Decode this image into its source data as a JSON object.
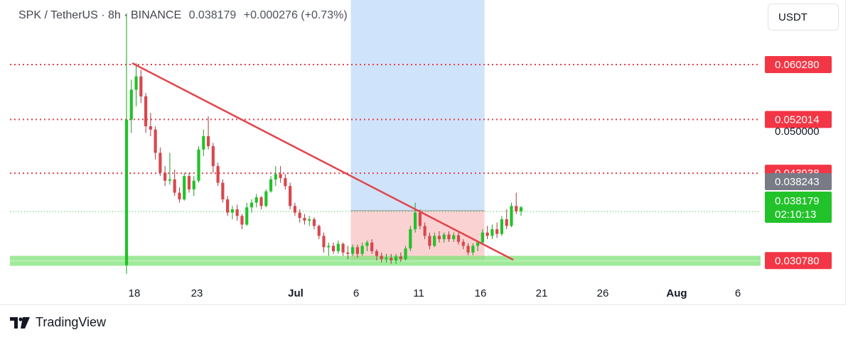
{
  "header": {
    "symbol": "SPK / TetherUS · 8h · BINANCE",
    "last_price": "0.038179",
    "change": "+0.000276 (+0.73%)"
  },
  "unit_button": "USDT",
  "footer": {
    "brand": "TradingView",
    "logo_icon": "tradingview-logo-icon"
  },
  "colors": {
    "up": "#22c22a",
    "down": "#d8474e",
    "trendline": "#e0464c",
    "level_line": "#e5424c",
    "support_zone": "#7fe27a",
    "target_zone": "#cfe3fb",
    "stop_zone": "#fbd2d2",
    "current_price_label": "#22c22a",
    "prev_price_label": "#787b86"
  },
  "chart_data": {
    "type": "candlestick",
    "x_tick_labels": [
      "18",
      "23",
      "Jul",
      "6",
      "11",
      "16",
      "21",
      "26",
      "Aug",
      "6"
    ],
    "y_range": [
      0.0275,
      0.07
    ],
    "price_labels": [
      {
        "value": 0.06028,
        "text": "0.060280",
        "style": "level"
      },
      {
        "value": 0.052014,
        "text": "0.052014",
        "style": "level"
      },
      {
        "value": 0.05,
        "text": "0.050000",
        "style": "axis"
      },
      {
        "value": 0.043938,
        "text": "0.043938",
        "style": "level"
      },
      {
        "value": 0.038243,
        "text": "0.038243",
        "style": "prev"
      },
      {
        "value": 0.038179,
        "text": "0.038179",
        "countdown": "02:10:13",
        "style": "current"
      },
      {
        "value": 0.03078,
        "text": "0.030780",
        "style": "level"
      }
    ],
    "horizontal_levels": [
      0.06028,
      0.052014,
      0.043938
    ],
    "support_zone": [
      0.03,
      0.0315
    ],
    "trendline": {
      "start": {
        "day": 18.7,
        "price": 0.0605
      },
      "end": {
        "day": 43.0,
        "price": 0.0309
      }
    },
    "position_tool": {
      "day_start": 53.5,
      "day_end": 75.5,
      "entry": 0.0383,
      "target": 0.07,
      "stop": 0.0308
    },
    "candles_ohlc": [
      [
        0.0301,
        0.068,
        0.0288,
        0.052
      ],
      [
        0.052,
        0.058,
        0.05,
        0.0565
      ],
      [
        0.0565,
        0.0605,
        0.054,
        0.0585
      ],
      [
        0.0585,
        0.0595,
        0.0545,
        0.0555
      ],
      [
        0.0555,
        0.056,
        0.05,
        0.051
      ],
      [
        0.051,
        0.053,
        0.0495,
        0.0505
      ],
      [
        0.0505,
        0.051,
        0.046,
        0.047
      ],
      [
        0.047,
        0.0478,
        0.0435,
        0.044
      ],
      [
        0.044,
        0.045,
        0.042,
        0.0428
      ],
      [
        0.0428,
        0.047,
        0.0422,
        0.043
      ],
      [
        0.043,
        0.0445,
        0.0405,
        0.041
      ],
      [
        0.041,
        0.0418,
        0.0395,
        0.04
      ],
      [
        0.04,
        0.044,
        0.0398,
        0.0435
      ],
      [
        0.0435,
        0.044,
        0.041,
        0.0415
      ],
      [
        0.0415,
        0.0435,
        0.0405,
        0.0428
      ],
      [
        0.0428,
        0.048,
        0.0425,
        0.0475
      ],
      [
        0.0475,
        0.0505,
        0.0465,
        0.0495
      ],
      [
        0.0495,
        0.0525,
        0.0475,
        0.048
      ],
      [
        0.048,
        0.0485,
        0.044,
        0.045
      ],
      [
        0.045,
        0.0455,
        0.042,
        0.0425
      ],
      [
        0.0425,
        0.043,
        0.0395,
        0.04
      ],
      [
        0.04,
        0.0405,
        0.0375,
        0.038
      ],
      [
        0.038,
        0.039,
        0.037,
        0.0385
      ],
      [
        0.0385,
        0.0392,
        0.0368,
        0.0375
      ],
      [
        0.0375,
        0.0378,
        0.0355,
        0.0362
      ],
      [
        0.0362,
        0.0395,
        0.036,
        0.0388
      ],
      [
        0.0388,
        0.04,
        0.038,
        0.0395
      ],
      [
        0.0395,
        0.0408,
        0.0388,
        0.0403
      ],
      [
        0.0403,
        0.0405,
        0.0385,
        0.039
      ],
      [
        0.039,
        0.0415,
        0.0388,
        0.0412
      ],
      [
        0.0412,
        0.0435,
        0.041,
        0.043
      ],
      [
        0.043,
        0.045,
        0.042,
        0.0438
      ],
      [
        0.0438,
        0.045,
        0.0425,
        0.0432
      ],
      [
        0.0432,
        0.0438,
        0.0415,
        0.042
      ],
      [
        0.042,
        0.0425,
        0.0385,
        0.039
      ],
      [
        0.039,
        0.0395,
        0.0375,
        0.038
      ],
      [
        0.038,
        0.0385,
        0.0365,
        0.0372
      ],
      [
        0.0372,
        0.0378,
        0.0362,
        0.0368
      ],
      [
        0.0368,
        0.0375,
        0.036,
        0.037
      ],
      [
        0.037,
        0.0373,
        0.0355,
        0.036
      ],
      [
        0.036,
        0.0362,
        0.034,
        0.0345
      ],
      [
        0.0345,
        0.035,
        0.032,
        0.0328
      ],
      [
        0.0328,
        0.0335,
        0.0315,
        0.033
      ],
      [
        0.033,
        0.0335,
        0.0318,
        0.0322
      ],
      [
        0.0322,
        0.0338,
        0.0318,
        0.0333
      ],
      [
        0.0333,
        0.0335,
        0.0315,
        0.032
      ],
      [
        0.032,
        0.033,
        0.031,
        0.0318
      ],
      [
        0.0318,
        0.0332,
        0.0315,
        0.0328
      ],
      [
        0.0328,
        0.0332,
        0.0312,
        0.0318
      ],
      [
        0.0318,
        0.0335,
        0.0315,
        0.033
      ],
      [
        0.033,
        0.0338,
        0.0322,
        0.0335
      ],
      [
        0.0335,
        0.034,
        0.0318,
        0.0322
      ],
      [
        0.0322,
        0.0325,
        0.0308,
        0.0315
      ],
      [
        0.0315,
        0.032,
        0.0305,
        0.031
      ],
      [
        0.031,
        0.0318,
        0.0305,
        0.0312
      ],
      [
        0.0312,
        0.0318,
        0.0303,
        0.0308
      ],
      [
        0.0308,
        0.0318,
        0.0303,
        0.0314
      ],
      [
        0.0314,
        0.032,
        0.0306,
        0.031
      ],
      [
        0.031,
        0.033,
        0.0308,
        0.0326
      ],
      [
        0.0326,
        0.036,
        0.0322,
        0.0355
      ],
      [
        0.0355,
        0.0395,
        0.035,
        0.038
      ],
      [
        0.038,
        0.0385,
        0.0355,
        0.036
      ],
      [
        0.036,
        0.0365,
        0.034,
        0.0345
      ],
      [
        0.0345,
        0.035,
        0.0325,
        0.033
      ],
      [
        0.033,
        0.035,
        0.0328,
        0.0345
      ],
      [
        0.0345,
        0.0352,
        0.0335,
        0.034
      ],
      [
        0.034,
        0.035,
        0.0335,
        0.0347
      ],
      [
        0.0347,
        0.0352,
        0.0336,
        0.034
      ],
      [
        0.034,
        0.035,
        0.0336,
        0.0346
      ],
      [
        0.0346,
        0.035,
        0.0332,
        0.0336
      ],
      [
        0.0336,
        0.034,
        0.0325,
        0.033
      ],
      [
        0.033,
        0.0334,
        0.0316,
        0.032
      ],
      [
        0.032,
        0.0334,
        0.0316,
        0.033
      ],
      [
        0.033,
        0.0338,
        0.0322,
        0.0335
      ],
      [
        0.0335,
        0.0355,
        0.0332,
        0.035
      ],
      [
        0.035,
        0.036,
        0.034,
        0.0345
      ],
      [
        0.0345,
        0.0362,
        0.034,
        0.0355
      ],
      [
        0.0355,
        0.0365,
        0.0342,
        0.0348
      ],
      [
        0.0348,
        0.0375,
        0.0345,
        0.037
      ],
      [
        0.037,
        0.0385,
        0.0355,
        0.036
      ],
      [
        0.036,
        0.0395,
        0.0358,
        0.039
      ],
      [
        0.039,
        0.041,
        0.0378,
        0.0382
      ],
      [
        0.0382,
        0.039,
        0.0375,
        0.0388
      ]
    ]
  }
}
